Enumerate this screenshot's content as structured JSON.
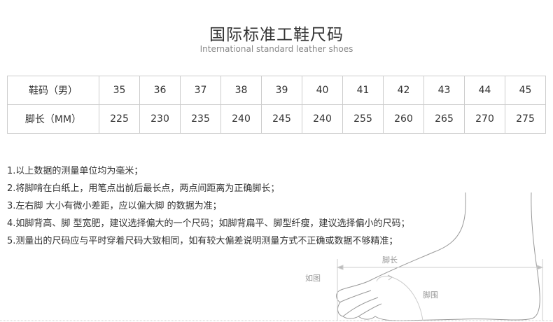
{
  "header": {
    "title": "国际标准工鞋尺码",
    "subtitle": "International standard leather shoes"
  },
  "size_table": {
    "rows": [
      {
        "label": "鞋码（男）",
        "values": [
          "35",
          "36",
          "37",
          "38",
          "39",
          "40",
          "41",
          "42",
          "43",
          "44",
          "45"
        ]
      },
      {
        "label": "脚长（MM）",
        "values": [
          "225",
          "230",
          "235",
          "240",
          "245",
          "240",
          "255",
          "260",
          "265",
          "270",
          "275"
        ]
      }
    ]
  },
  "notes": [
    "1.以上数据的测量单位均为毫米；",
    "2.将脚啃在白纸上，用笔点出前后最长点，两点间距离为正确脚长；",
    "3.左右脚 大小有微小差距，应以偏大脚 的数据为准；",
    "4.如脚背高、脚 型宽肥，建议选择偏大的一个尺码；如脚背扁平、脚型纤瘦，建议选择偏小的尺码；",
    "5.测量出的尺码应与平时穿着尺码大致相同，如有较大偏差说明测量方式不正确或数据不够精准；"
  ],
  "diagram": {
    "foot_length_label": "脚长",
    "as_shown_label": "如图",
    "foot_girth_label": "脚围"
  }
}
